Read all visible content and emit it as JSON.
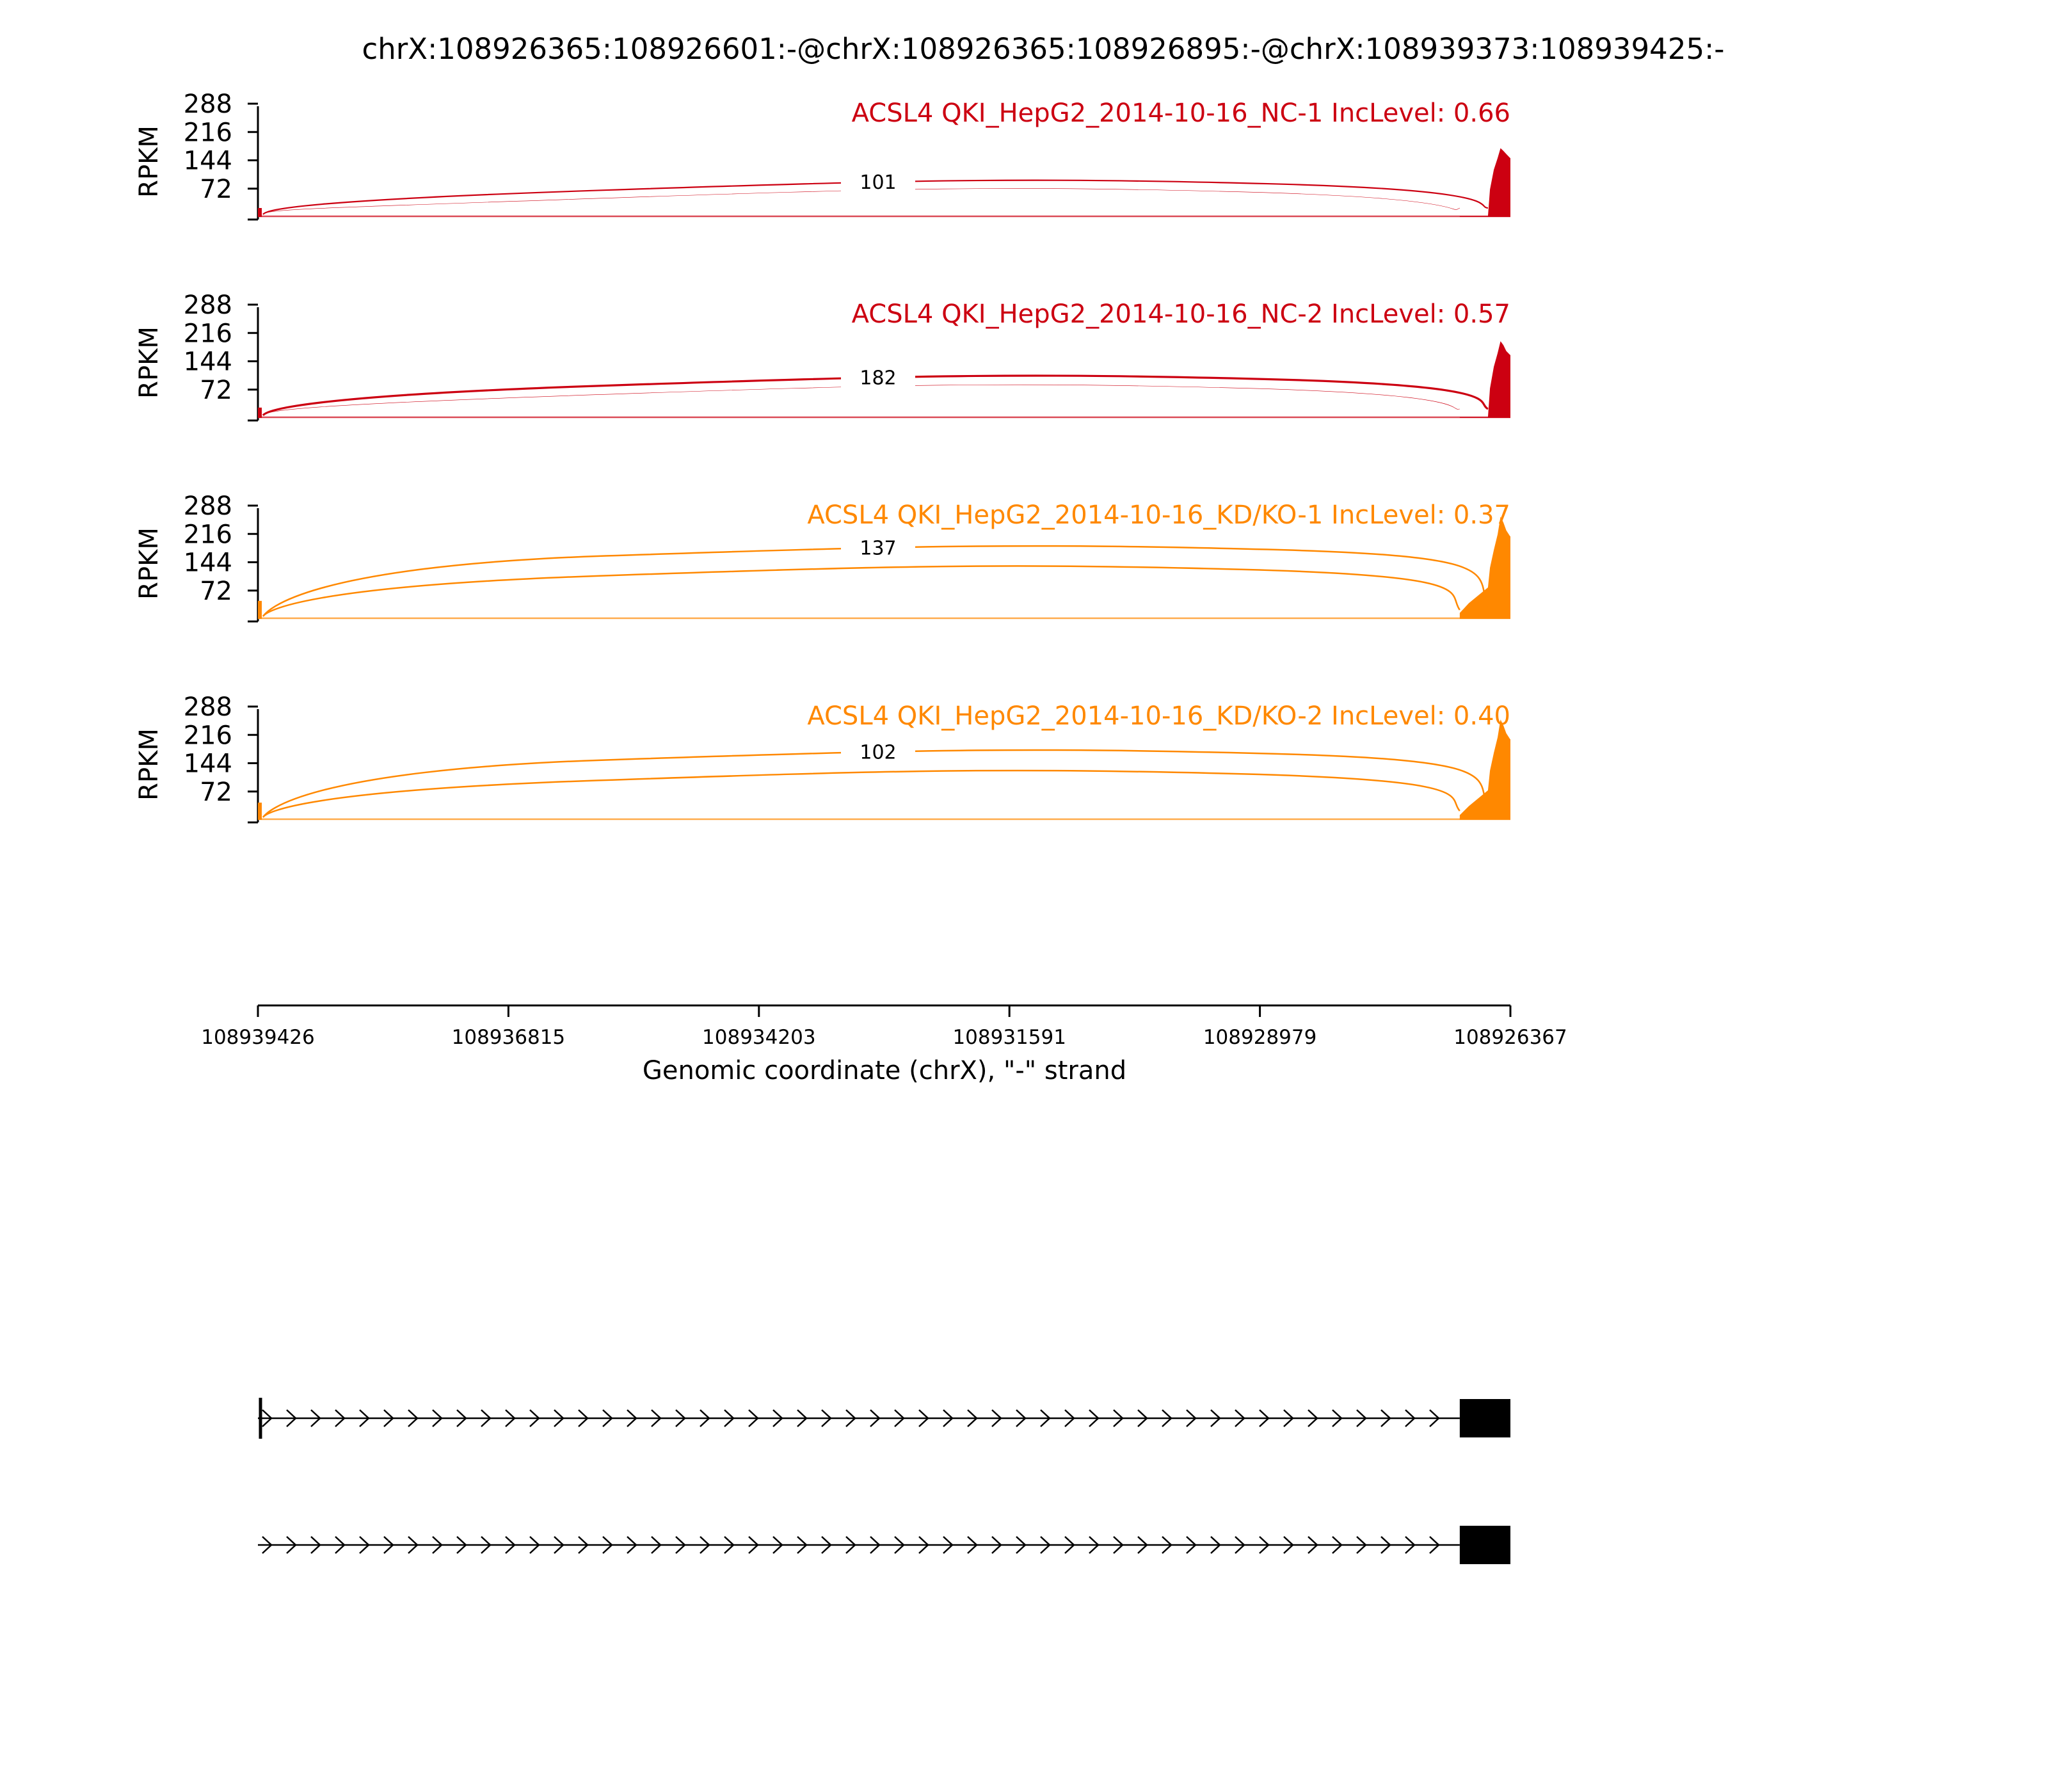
{
  "chart_data": {
    "type": "area",
    "title": "chrX:108926365:108926601:-@chrX:108926365:108926895:-@chrX:108939373:108939425:-",
    "xlabel": "Genomic coordinate (chrX), \"-\" strand",
    "ylabel": "RPKM",
    "x_ticks": [
      "108939426",
      "108936815",
      "108934203",
      "108931591",
      "108928979",
      "108926367"
    ],
    "xlim": [
      108939426,
      108926367
    ],
    "ylim": [
      0,
      288
    ],
    "y_ticks": [
      72,
      144,
      216,
      288
    ],
    "tracks": [
      {
        "label": "ACSL4 QKI_HepG2_2014-10-16_NC-1 IncLevel: 0.66",
        "color": "#cc0011",
        "arcs": [
          {
            "from": 108939373,
            "to": 108926601,
            "peak": 91,
            "width": 2.2,
            "label": "101"
          },
          {
            "from": 108939373,
            "to": 108926895,
            "peak": 70,
            "width": 0.6,
            "label": ""
          }
        ],
        "coverage": [
          {
            "x": 108926895,
            "y": 2
          },
          {
            "x": 108926601,
            "y": 2
          },
          {
            "x": 108926580,
            "y": 70
          },
          {
            "x": 108926540,
            "y": 120
          },
          {
            "x": 108926500,
            "y": 150
          },
          {
            "x": 108926470,
            "y": 175
          },
          {
            "x": 108926440,
            "y": 168
          },
          {
            "x": 108926410,
            "y": 160
          },
          {
            "x": 108926370,
            "y": 150
          },
          {
            "x": 108926367,
            "y": 150
          }
        ]
      },
      {
        "label": "ACSL4 QKI_HepG2_2014-10-16_NC-2 IncLevel: 0.57",
        "color": "#cc0011",
        "arcs": [
          {
            "from": 108939373,
            "to": 108926601,
            "peak": 105,
            "width": 3.2,
            "label": "182"
          },
          {
            "from": 108939373,
            "to": 108926895,
            "peak": 82,
            "width": 0.6,
            "label": ""
          }
        ],
        "coverage": [
          {
            "x": 108926895,
            "y": 2
          },
          {
            "x": 108926601,
            "y": 2
          },
          {
            "x": 108926580,
            "y": 75
          },
          {
            "x": 108926540,
            "y": 130
          },
          {
            "x": 108926500,
            "y": 165
          },
          {
            "x": 108926470,
            "y": 195
          },
          {
            "x": 108926440,
            "y": 185
          },
          {
            "x": 108926410,
            "y": 170
          },
          {
            "x": 108926370,
            "y": 160
          },
          {
            "x": 108926367,
            "y": 160
          }
        ]
      },
      {
        "label": "ACSL4 QKI_HepG2_2014-10-16_KD/KO-1 IncLevel: 0.37",
        "color": "#ff8800",
        "arcs": [
          {
            "from": 108939373,
            "to": 108926601,
            "peak": 183,
            "width": 2.5,
            "label": "137"
          },
          {
            "from": 108939373,
            "to": 108926895,
            "peak": 132,
            "width": 2.5,
            "label": ""
          }
        ],
        "coverage": [
          {
            "x": 108926895,
            "y": 15
          },
          {
            "x": 108926800,
            "y": 40
          },
          {
            "x": 108926601,
            "y": 80
          },
          {
            "x": 108926580,
            "y": 130
          },
          {
            "x": 108926540,
            "y": 175
          },
          {
            "x": 108926500,
            "y": 215
          },
          {
            "x": 108926470,
            "y": 260
          },
          {
            "x": 108926440,
            "y": 245
          },
          {
            "x": 108926410,
            "y": 225
          },
          {
            "x": 108926370,
            "y": 210
          },
          {
            "x": 108926367,
            "y": 210
          }
        ]
      },
      {
        "label": "ACSL4 QKI_HepG2_2014-10-16_KD/KO-2 IncLevel: 0.40",
        "color": "#ff8800",
        "arcs": [
          {
            "from": 108939373,
            "to": 108926601,
            "peak": 175,
            "width": 2.5,
            "label": "102"
          },
          {
            "from": 108939373,
            "to": 108926895,
            "peak": 123,
            "width": 2.5,
            "label": ""
          }
        ],
        "coverage": [
          {
            "x": 108926895,
            "y": 12
          },
          {
            "x": 108926800,
            "y": 35
          },
          {
            "x": 108926601,
            "y": 75
          },
          {
            "x": 108926580,
            "y": 125
          },
          {
            "x": 108926540,
            "y": 170
          },
          {
            "x": 108926500,
            "y": 210
          },
          {
            "x": 108926470,
            "y": 255
          },
          {
            "x": 108926440,
            "y": 240
          },
          {
            "x": 108926410,
            "y": 220
          },
          {
            "x": 108926370,
            "y": 205
          },
          {
            "x": 108926367,
            "y": 205
          }
        ]
      }
    ],
    "gene_models": [
      {
        "start_tick": true,
        "exons": [
          {
            "from": 108926895,
            "to": 108926367
          }
        ]
      },
      {
        "start_tick": false,
        "exons": [
          {
            "from": 108926895,
            "to": 108926367
          }
        ]
      }
    ]
  }
}
